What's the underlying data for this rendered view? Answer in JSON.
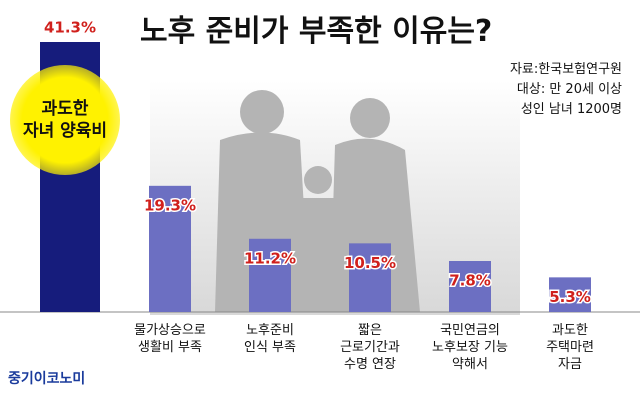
{
  "chart_data": {
    "type": "bar",
    "title": "노후 준비가 부족한 이유는?",
    "source": [
      "자료:한국보험연구원",
      "대상: 만 20세 이상",
      "성인 남녀 1200명"
    ],
    "categories": [
      "과도한\n자녀 양육비",
      "물가상승으로\n생활비 부족",
      "노후준비\n인식 부족",
      "짧은\n근로기간과\n수명 연장",
      "국민연금의\n노후보장 기능\n약해서",
      "과도한\n주택마련\n자금"
    ],
    "values": [
      41.3,
      19.3,
      11.2,
      10.5,
      7.8,
      5.3
    ],
    "value_labels": [
      "41.3%",
      "19.3%",
      "11.2%",
      "10.5%",
      "7.8%",
      "5.3%"
    ],
    "color": "#6c6fc2",
    "highlight_color": "#161c7c",
    "label_color": "#d0201c",
    "footer": "중기이코노미"
  }
}
